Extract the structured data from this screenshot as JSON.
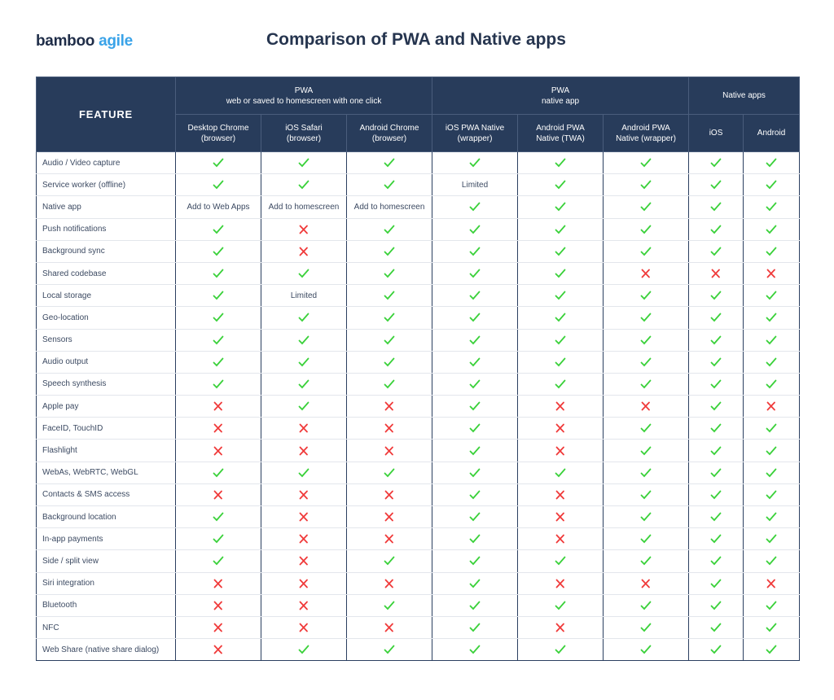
{
  "logo": {
    "part1": "bamboo",
    "part2": "agile"
  },
  "title": "Comparison of PWA and Native apps",
  "colors": {
    "header_bg": "#283c5b",
    "check": "#3ad13a",
    "cross": "#f03a3a",
    "logo_accent": "#3aa3e8"
  },
  "header": {
    "feature": "FEATURE",
    "groups": [
      {
        "line1": "PWA",
        "line2": "web or saved to homescreen with one click"
      },
      {
        "line1": "PWA",
        "line2": "native app"
      },
      {
        "line1": "Native apps",
        "line2": ""
      }
    ],
    "columns": [
      {
        "line1": "Desktop Chrome",
        "line2": "(browser)"
      },
      {
        "line1": "iOS Safari",
        "line2": "(browser)"
      },
      {
        "line1": "Android Chrome",
        "line2": "(browser)"
      },
      {
        "line1": "iOS PWA Native",
        "line2": "(wrapper)"
      },
      {
        "line1": "Android PWA",
        "line2": "Native (TWA)"
      },
      {
        "line1": "Android PWA",
        "line2": "Native (wrapper)"
      },
      {
        "line1": "iOS",
        "line2": ""
      },
      {
        "line1": "Android",
        "line2": ""
      }
    ]
  },
  "legend_values": {
    "Y": "check-icon",
    "N": "cross-icon"
  },
  "rows": [
    {
      "feature": "Audio / Video capture",
      "values": [
        "Y",
        "Y",
        "Y",
        "Y",
        "Y",
        "Y",
        "Y",
        "Y"
      ]
    },
    {
      "feature": "Service worker (offline)",
      "values": [
        "Y",
        "Y",
        "Y",
        "Limited",
        "Y",
        "Y",
        "Y",
        "Y"
      ]
    },
    {
      "feature": "Native app",
      "values": [
        "Add to Web Apps",
        "Add to homescreen",
        "Add to homescreen",
        "Y",
        "Y",
        "Y",
        "Y",
        "Y"
      ]
    },
    {
      "feature": "Push notifications",
      "values": [
        "Y",
        "N",
        "Y",
        "Y",
        "Y",
        "Y",
        "Y",
        "Y"
      ]
    },
    {
      "feature": "Background sync",
      "values": [
        "Y",
        "N",
        "Y",
        "Y",
        "Y",
        "Y",
        "Y",
        "Y"
      ]
    },
    {
      "feature": "Shared codebase",
      "values": [
        "Y",
        "Y",
        "Y",
        "Y",
        "Y",
        "N",
        "N",
        "N"
      ]
    },
    {
      "feature": "Local storage",
      "values": [
        "Y",
        "Limited",
        "Y",
        "Y",
        "Y",
        "Y",
        "Y",
        "Y"
      ]
    },
    {
      "feature": "Geo-location",
      "values": [
        "Y",
        "Y",
        "Y",
        "Y",
        "Y",
        "Y",
        "Y",
        "Y"
      ]
    },
    {
      "feature": "Sensors",
      "values": [
        "Y",
        "Y",
        "Y",
        "Y",
        "Y",
        "Y",
        "Y",
        "Y"
      ]
    },
    {
      "feature": "Audio output",
      "values": [
        "Y",
        "Y",
        "Y",
        "Y",
        "Y",
        "Y",
        "Y",
        "Y"
      ]
    },
    {
      "feature": "Speech synthesis",
      "values": [
        "Y",
        "Y",
        "Y",
        "Y",
        "Y",
        "Y",
        "Y",
        "Y"
      ]
    },
    {
      "feature": "Apple pay",
      "values": [
        "N",
        "Y",
        "N",
        "Y",
        "N",
        "N",
        "Y",
        "N"
      ]
    },
    {
      "feature": "FaceID, TouchID",
      "values": [
        "N",
        "N",
        "N",
        "Y",
        "N",
        "Y",
        "Y",
        "Y"
      ]
    },
    {
      "feature": "Flashlight",
      "values": [
        "N",
        "N",
        "N",
        "Y",
        "N",
        "Y",
        "Y",
        "Y"
      ]
    },
    {
      "feature": "WebAs, WebRTC, WebGL",
      "values": [
        "Y",
        "Y",
        "Y",
        "Y",
        "Y",
        "Y",
        "Y",
        "Y"
      ]
    },
    {
      "feature": "Contacts & SMS access",
      "values": [
        "N",
        "N",
        "N",
        "Y",
        "N",
        "Y",
        "Y",
        "Y"
      ]
    },
    {
      "feature": "Background location",
      "values": [
        "Y",
        "N",
        "N",
        "Y",
        "N",
        "Y",
        "Y",
        "Y"
      ]
    },
    {
      "feature": "In-app payments",
      "values": [
        "Y",
        "N",
        "N",
        "Y",
        "N",
        "Y",
        "Y",
        "Y"
      ]
    },
    {
      "feature": "Side / split view",
      "values": [
        "Y",
        "N",
        "Y",
        "Y",
        "Y",
        "Y",
        "Y",
        "Y"
      ]
    },
    {
      "feature": "Siri integration",
      "values": [
        "N",
        "N",
        "N",
        "Y",
        "N",
        "N",
        "Y",
        "N"
      ]
    },
    {
      "feature": "Bluetooth",
      "values": [
        "N",
        "N",
        "Y",
        "Y",
        "Y",
        "Y",
        "Y",
        "Y"
      ]
    },
    {
      "feature": "NFC",
      "values": [
        "N",
        "N",
        "N",
        "Y",
        "N",
        "Y",
        "Y",
        "Y"
      ]
    },
    {
      "feature": "Web Share (native share dialog)",
      "values": [
        "N",
        "Y",
        "Y",
        "Y",
        "Y",
        "Y",
        "Y",
        "Y"
      ]
    }
  ]
}
